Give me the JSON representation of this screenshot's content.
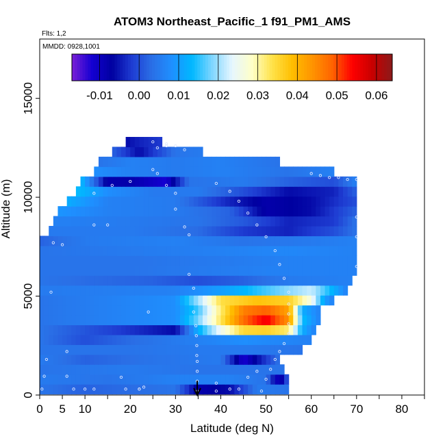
{
  "chart_data": {
    "type": "heatmap",
    "title": "ATOM3 Northeast_Pacific_1 f91_PM1_AMS",
    "flights_label": "Flts: 1,2",
    "date_label": "MMDD: 0928,1001",
    "xlabel": "Latitude (deg N)",
    "ylabel": "Altitude (m)",
    "xlim": [
      0,
      85
    ],
    "ylim": [
      0,
      18000
    ],
    "x_ticks": [
      0,
      5,
      10,
      20,
      30,
      40,
      50,
      60,
      70,
      80
    ],
    "y_ticks": [
      0,
      5000,
      10000,
      15000
    ],
    "colorbar": {
      "min": -0.017,
      "max": 0.064,
      "ticks": [
        -0.01,
        0.0,
        0.01,
        0.02,
        0.03,
        0.04,
        0.05,
        0.06
      ],
      "tick_labels": [
        "-0.01",
        "0.00",
        "0.01",
        "0.02",
        "0.03",
        "0.04",
        "0.05",
        "0.06"
      ],
      "colors": [
        "#7a1fd6",
        "#1400d2",
        "#0000a0",
        "#1e3cd2",
        "#2a6fe6",
        "#1e90ff",
        "#00b8ff",
        "#7fd6ff",
        "#e6f6ff",
        "#ffffc8",
        "#ffe24a",
        "#ffbe00",
        "#ff9400",
        "#ff6400",
        "#ff0000",
        "#c80000",
        "#8b1a1a"
      ]
    },
    "arrow_latitude": 34.8,
    "bands": [
      {
        "alt": 300,
        "lat_min": 0,
        "lat_max": 55,
        "values": [
          [
            0,
            0.004
          ],
          [
            10,
            0.002
          ],
          [
            30,
            0.004
          ],
          [
            35,
            -0.008
          ],
          [
            42,
            -0.006
          ],
          [
            48,
            0.005
          ],
          [
            55,
            0.004
          ]
        ]
      },
      {
        "alt": 800,
        "lat_min": 0,
        "lat_max": 55,
        "values": [
          [
            0,
            0.005
          ],
          [
            15,
            0.004
          ],
          [
            30,
            0.006
          ],
          [
            42,
            0.006
          ],
          [
            50,
            0.004
          ],
          [
            53,
            -0.012
          ],
          [
            55,
            0.003
          ]
        ]
      },
      {
        "alt": 1300,
        "lat_min": 0,
        "lat_max": 54,
        "values": [
          [
            0,
            0.004
          ],
          [
            20,
            0.005
          ],
          [
            35,
            0.004
          ],
          [
            45,
            0.004
          ],
          [
            54,
            0.004
          ]
        ]
      },
      {
        "alt": 1800,
        "lat_min": 0,
        "lat_max": 53,
        "values": [
          [
            0,
            0.005
          ],
          [
            10,
            0.002
          ],
          [
            25,
            0.004
          ],
          [
            40,
            0.005
          ],
          [
            45,
            -0.012
          ],
          [
            50,
            -0.002
          ],
          [
            53,
            0.004
          ]
        ]
      },
      {
        "alt": 2300,
        "lat_min": 0,
        "lat_max": 58,
        "values": [
          [
            0,
            0.004
          ],
          [
            20,
            0.004
          ],
          [
            35,
            0.005
          ],
          [
            45,
            0.005
          ],
          [
            58,
            0.004
          ]
        ]
      },
      {
        "alt": 2800,
        "lat_min": 0,
        "lat_max": 60,
        "values": [
          [
            0,
            0.004
          ],
          [
            10,
            0.0
          ],
          [
            20,
            0.003
          ],
          [
            35,
            0.006
          ],
          [
            45,
            0.008
          ],
          [
            60,
            0.006
          ]
        ]
      },
      {
        "alt": 3300,
        "lat_min": 0,
        "lat_max": 61,
        "values": [
          [
            0,
            0.004
          ],
          [
            30,
            -0.006
          ],
          [
            35,
            0.012
          ],
          [
            40,
            0.025
          ],
          [
            45,
            0.035
          ],
          [
            50,
            0.036
          ],
          [
            55,
            0.032
          ],
          [
            58,
            0.012
          ],
          [
            61,
            0.006
          ]
        ]
      },
      {
        "alt": 3800,
        "lat_min": 0,
        "lat_max": 62,
        "values": [
          [
            0,
            0.004
          ],
          [
            30,
            0.008
          ],
          [
            35,
            0.018
          ],
          [
            40,
            0.033
          ],
          [
            45,
            0.048
          ],
          [
            50,
            0.055
          ],
          [
            55,
            0.044
          ],
          [
            58,
            0.014
          ],
          [
            62,
            0.006
          ]
        ]
      },
      {
        "alt": 4300,
        "lat_min": 0,
        "lat_max": 62,
        "values": [
          [
            0,
            0.004
          ],
          [
            30,
            0.008
          ],
          [
            35,
            0.016
          ],
          [
            40,
            0.032
          ],
          [
            45,
            0.046
          ],
          [
            50,
            0.049
          ],
          [
            55,
            0.042
          ],
          [
            58,
            0.012
          ],
          [
            62,
            0.006
          ]
        ]
      },
      {
        "alt": 4800,
        "lat_min": 0,
        "lat_max": 65,
        "values": [
          [
            0,
            0.004
          ],
          [
            30,
            0.008
          ],
          [
            35,
            0.02
          ],
          [
            40,
            0.034
          ],
          [
            48,
            0.038
          ],
          [
            55,
            0.036
          ],
          [
            60,
            0.026
          ],
          [
            63,
            0.01
          ],
          [
            65,
            0.006
          ]
        ]
      },
      {
        "alt": 5300,
        "lat_min": 0,
        "lat_max": 68,
        "values": [
          [
            0,
            0.005
          ],
          [
            30,
            0.006
          ],
          [
            40,
            0.01
          ],
          [
            50,
            0.016
          ],
          [
            60,
            0.022
          ],
          [
            65,
            0.012
          ],
          [
            68,
            0.006
          ]
        ]
      },
      {
        "alt": 5800,
        "lat_min": 0,
        "lat_max": 69,
        "values": [
          [
            0,
            0.004
          ],
          [
            10,
            0.003
          ],
          [
            25,
            0.002
          ],
          [
            35,
            0.0
          ],
          [
            45,
            0.002
          ],
          [
            55,
            0.005
          ],
          [
            69,
            0.006
          ]
        ]
      },
      {
        "alt": 6300,
        "lat_min": 0,
        "lat_max": 70,
        "values": [
          [
            0,
            0.004
          ],
          [
            20,
            0.004
          ],
          [
            35,
            0.005
          ],
          [
            50,
            0.006
          ],
          [
            70,
            0.006
          ]
        ]
      },
      {
        "alt": 6800,
        "lat_min": 0,
        "lat_max": 70,
        "values": [
          [
            0,
            0.004
          ],
          [
            20,
            0.004
          ],
          [
            40,
            0.005
          ],
          [
            55,
            0.006
          ],
          [
            70,
            0.006
          ]
        ]
      },
      {
        "alt": 7300,
        "lat_min": 0,
        "lat_max": 70,
        "values": [
          [
            0,
            0.004
          ],
          [
            20,
            0.005
          ],
          [
            40,
            0.006
          ],
          [
            55,
            0.007
          ],
          [
            70,
            0.006
          ]
        ]
      },
      {
        "alt": 7800,
        "lat_min": 0,
        "lat_max": 70,
        "values": [
          [
            0,
            0.002
          ],
          [
            10,
            0.005
          ],
          [
            30,
            0.006
          ],
          [
            45,
            0.004
          ],
          [
            60,
            0.005
          ],
          [
            70,
            0.006
          ]
        ]
      },
      {
        "alt": 8300,
        "lat_min": 2,
        "lat_max": 70,
        "values": [
          [
            2,
            0.005
          ],
          [
            20,
            0.005
          ],
          [
            35,
            0.003
          ],
          [
            45,
            -0.002
          ],
          [
            55,
            -0.004
          ],
          [
            65,
            0.0
          ],
          [
            70,
            0.004
          ]
        ]
      },
      {
        "alt": 8800,
        "lat_min": 3,
        "lat_max": 70,
        "values": [
          [
            3,
            0.006
          ],
          [
            20,
            0.005
          ],
          [
            35,
            0.004
          ],
          [
            45,
            0.001
          ],
          [
            55,
            -0.004
          ],
          [
            65,
            -0.002
          ],
          [
            70,
            0.004
          ]
        ]
      },
      {
        "alt": 9300,
        "lat_min": 4,
        "lat_max": 70,
        "values": [
          [
            4,
            0.009
          ],
          [
            15,
            0.006
          ],
          [
            30,
            0.005
          ],
          [
            42,
            0.002
          ],
          [
            50,
            -0.008
          ],
          [
            60,
            -0.006
          ],
          [
            70,
            0.002
          ]
        ]
      },
      {
        "alt": 9800,
        "lat_min": 6,
        "lat_max": 70,
        "values": [
          [
            6,
            0.012
          ],
          [
            15,
            0.006
          ],
          [
            30,
            0.005
          ],
          [
            42,
            -0.004
          ],
          [
            50,
            -0.008
          ],
          [
            60,
            -0.006
          ],
          [
            70,
            0.0
          ]
        ]
      },
      {
        "alt": 10300,
        "lat_min": 8,
        "lat_max": 70,
        "values": [
          [
            8,
            0.014
          ],
          [
            15,
            0.008
          ],
          [
            25,
            0.005
          ],
          [
            35,
            0.005
          ],
          [
            45,
            0.0
          ],
          [
            55,
            -0.006
          ],
          [
            65,
            -0.004
          ],
          [
            70,
            0.002
          ]
        ]
      },
      {
        "alt": 10800,
        "lat_min": 9,
        "lat_max": 70,
        "values": [
          [
            9,
            0.014
          ],
          [
            15,
            -0.008
          ],
          [
            20,
            -0.008
          ],
          [
            28,
            -0.012
          ],
          [
            33,
            0.004
          ],
          [
            45,
            0.005
          ],
          [
            55,
            0.002
          ],
          [
            65,
            0.0
          ],
          [
            70,
            0.006
          ]
        ]
      },
      {
        "alt": 11300,
        "lat_min": 12,
        "lat_max": 65,
        "values": [
          [
            12,
            0.008
          ],
          [
            20,
            0.006
          ],
          [
            30,
            0.005
          ],
          [
            40,
            0.006
          ],
          [
            55,
            0.004
          ],
          [
            65,
            0.006
          ]
        ]
      },
      {
        "alt": 11800,
        "lat_min": 13,
        "lat_max": 53,
        "values": [
          [
            13,
            0.004
          ],
          [
            20,
            0.006
          ],
          [
            30,
            0.005
          ],
          [
            40,
            0.006
          ],
          [
            53,
            0.004
          ]
        ]
      },
      {
        "alt": 12300,
        "lat_min": 16,
        "lat_max": 36,
        "values": [
          [
            16,
            0.002
          ],
          [
            22,
            -0.006
          ],
          [
            30,
            0.004
          ],
          [
            36,
            0.005
          ]
        ]
      },
      {
        "alt": 12800,
        "lat_min": 19,
        "lat_max": 27,
        "values": [
          [
            19,
            -0.006
          ],
          [
            22,
            -0.004
          ],
          [
            27,
            -0.002
          ]
        ]
      }
    ],
    "tracks": [
      {
        "name": "profile-dots-south",
        "points": [
          [
            0.5,
            300
          ],
          [
            1,
            950
          ],
          [
            1.5,
            1800
          ],
          [
            2.5,
            5200
          ],
          [
            3,
            7700
          ],
          [
            5,
            7600
          ],
          [
            6,
            2200
          ],
          [
            6,
            950
          ],
          [
            7.5,
            300
          ],
          [
            10,
            300
          ],
          [
            12,
            300
          ],
          [
            12,
            8600
          ],
          [
            15,
            8600
          ],
          [
            18,
            900
          ],
          [
            19,
            300
          ],
          [
            22,
            300
          ],
          [
            22,
            300
          ],
          [
            23,
            400
          ],
          [
            24,
            4200
          ],
          [
            25,
            11400
          ],
          [
            26,
            12500
          ],
          [
            28,
            12600
          ],
          [
            28,
            10600
          ],
          [
            30,
            9400
          ],
          [
            32,
            8500
          ],
          [
            33,
            8100
          ],
          [
            33,
            6100
          ],
          [
            34,
            5400
          ],
          [
            34,
            4200
          ],
          [
            34.5,
            3500
          ],
          [
            34.6,
            3000
          ],
          [
            34.7,
            2500
          ],
          [
            34.7,
            2000
          ],
          [
            34.8,
            1700
          ],
          [
            34.8,
            1200
          ],
          [
            34.8,
            700
          ],
          [
            34.8,
            200
          ]
        ]
      },
      {
        "name": "profile-dots-north",
        "points": [
          [
            39,
            600
          ],
          [
            39,
            200
          ],
          [
            42,
            300
          ],
          [
            44,
            300
          ],
          [
            46,
            900
          ],
          [
            48,
            1200
          ],
          [
            49,
            200
          ],
          [
            50,
            800
          ],
          [
            51,
            1300
          ],
          [
            52,
            1800
          ],
          [
            53,
            2200
          ],
          [
            54,
            2600
          ],
          [
            55,
            3100
          ],
          [
            55,
            3600
          ],
          [
            55,
            4100
          ],
          [
            55,
            4600
          ],
          [
            55,
            5200
          ],
          [
            54,
            5900
          ],
          [
            53,
            6600
          ],
          [
            52,
            7300
          ],
          [
            50,
            8000
          ],
          [
            48,
            8600
          ],
          [
            46,
            9200
          ],
          [
            44,
            9800
          ],
          [
            42,
            10300
          ],
          [
            39,
            10700
          ],
          [
            30,
            10200
          ],
          [
            26,
            11200
          ],
          [
            20,
            10800
          ],
          [
            16,
            10600
          ],
          [
            12,
            10200
          ]
        ]
      },
      {
        "name": "upper-legs",
        "points": [
          [
            25,
            12800
          ],
          [
            28,
            12700
          ],
          [
            30,
            12600
          ],
          [
            32,
            12400
          ],
          [
            60,
            11200
          ],
          [
            62,
            11100
          ],
          [
            64,
            11000
          ],
          [
            66,
            11000
          ],
          [
            68,
            10900
          ],
          [
            70,
            10900
          ],
          [
            70,
            9000
          ],
          [
            70,
            8000
          ],
          [
            70,
            6500
          ]
        ]
      }
    ]
  }
}
